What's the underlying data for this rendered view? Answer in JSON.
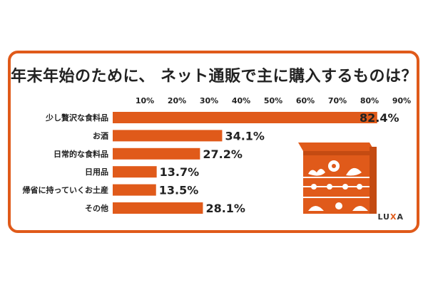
{
  "title": "年末年始のために、 ネット通販で主に購入するものは？",
  "brand": {
    "prefix": "LU",
    "accent": "X",
    "suffix": "A"
  },
  "colors": {
    "bar": "#e05a1a",
    "frame": "#e05a1a",
    "text": "#222222"
  },
  "chart_data": {
    "type": "bar",
    "orientation": "horizontal",
    "title": "年末年始のために、 ネット通販で主に購入するものは？",
    "xlabel": "",
    "ylabel": "",
    "xlim": [
      0,
      100
    ],
    "x_ticks": [
      "10%",
      "20%",
      "30%",
      "40%",
      "50%",
      "60%",
      "70%",
      "80%",
      "90%"
    ],
    "x_tick_values": [
      10,
      20,
      30,
      40,
      50,
      60,
      70,
      80,
      90
    ],
    "categories": [
      "少し贅沢な食料品",
      "お酒",
      "日常的な食料品",
      "日用品",
      "帰省に持っていくお土産",
      "その他"
    ],
    "values": [
      82.4,
      34.1,
      27.2,
      13.7,
      13.5,
      28.1
    ],
    "value_labels": [
      "82.4%",
      "34.1%",
      "27.2%",
      "13.7%",
      "13.5%",
      "28.1%"
    ],
    "grid": false,
    "legend": "none"
  }
}
